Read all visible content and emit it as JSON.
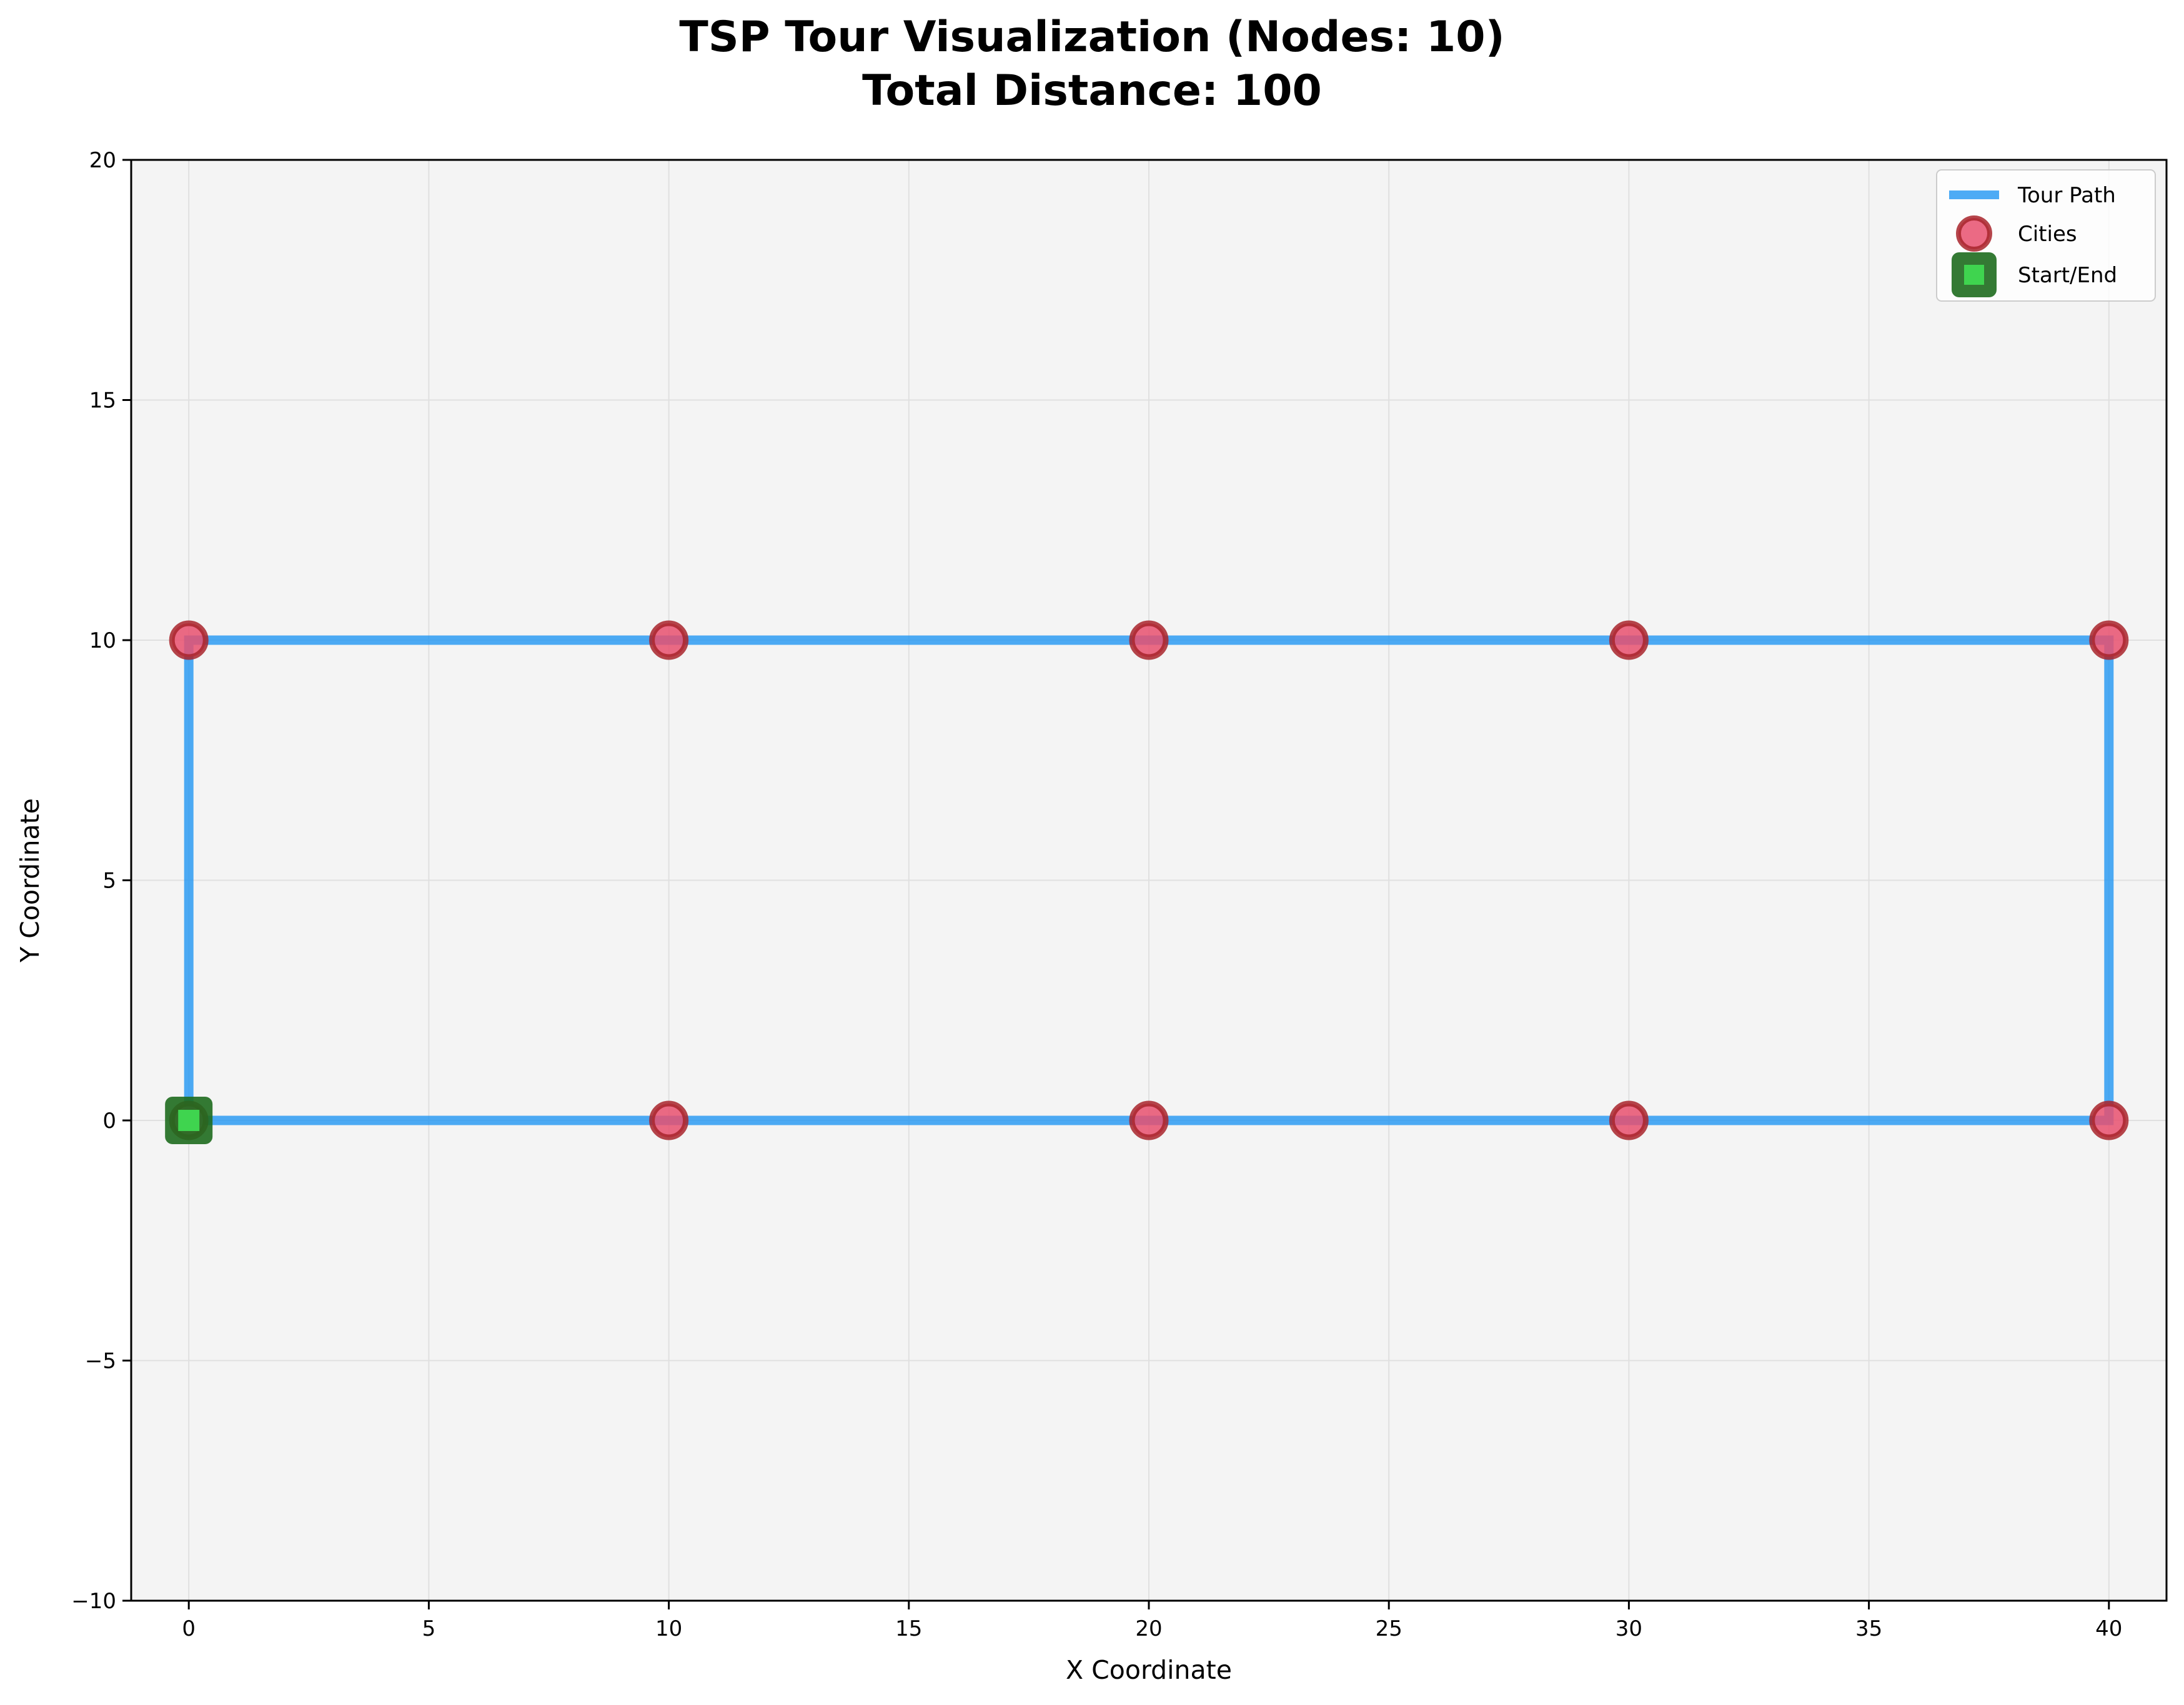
{
  "chart_data": {
    "type": "line",
    "title": "TSP Tour Visualization (Nodes: 10)",
    "subtitle": "Total Distance: 100",
    "xlabel": "X Coordinate",
    "ylabel": "Y Coordinate",
    "xlim": [
      -1.2,
      41.2
    ],
    "ylim": [
      -10,
      20
    ],
    "xticks": [
      0,
      5,
      10,
      15,
      20,
      25,
      30,
      35,
      40
    ],
    "xtick_labels": [
      "0",
      "5",
      "10",
      "15",
      "20",
      "25",
      "30",
      "35",
      "40"
    ],
    "yticks": [
      -10,
      -5,
      0,
      5,
      10,
      15,
      20
    ],
    "ytick_labels": [
      "−10",
      "−5",
      "0",
      "5",
      "10",
      "15",
      "20"
    ],
    "grid": true,
    "legend_position": "top-right",
    "legend": [
      "Tour Path",
      "Cities",
      "Start/End"
    ],
    "series": [
      {
        "name": "Tour Path",
        "kind": "line",
        "color": "#2196F3",
        "points": [
          [
            0,
            0
          ],
          [
            10,
            0
          ],
          [
            20,
            0
          ],
          [
            30,
            0
          ],
          [
            40,
            0
          ],
          [
            40,
            10
          ],
          [
            30,
            10
          ],
          [
            20,
            10
          ],
          [
            10,
            10
          ],
          [
            0,
            10
          ],
          [
            0,
            0
          ]
        ]
      },
      {
        "name": "Cities",
        "kind": "scatter",
        "fill": "#E8506F",
        "edge": "#A8242C",
        "points": [
          [
            0,
            0
          ],
          [
            10,
            0
          ],
          [
            20,
            0
          ],
          [
            30,
            0
          ],
          [
            40,
            0
          ],
          [
            40,
            10
          ],
          [
            30,
            10
          ],
          [
            20,
            10
          ],
          [
            10,
            10
          ],
          [
            0,
            10
          ]
        ]
      },
      {
        "name": "Start/End",
        "kind": "marker",
        "fill": "#3FD44F",
        "edge": "#1E6B1E",
        "points": [
          [
            0,
            0
          ]
        ]
      }
    ],
    "colors": {
      "plot_background": "#F4F4F4",
      "grid": "#E0E0E0"
    }
  }
}
